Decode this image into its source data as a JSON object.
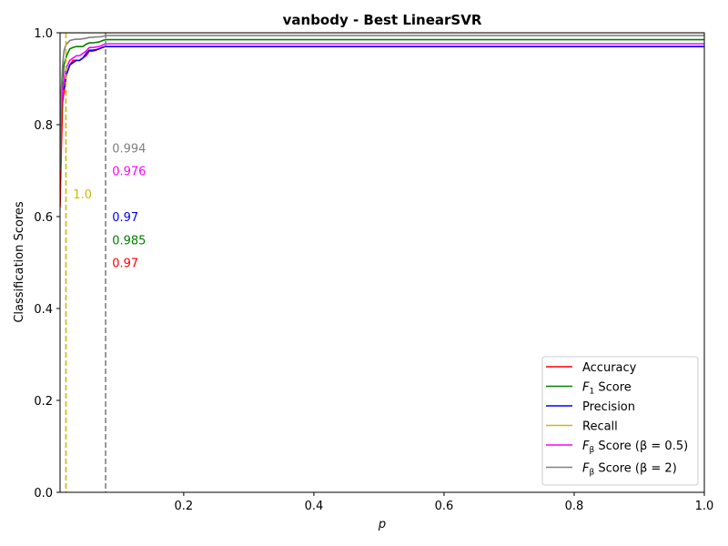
{
  "chart_data": {
    "type": "line",
    "title": "vanbody - Best LinearSVR",
    "xlabel": "p",
    "ylabel": "Classification Scores",
    "xlim": [
      0.01,
      1.0
    ],
    "ylim": [
      0.0,
      1.0
    ],
    "x_ticks": [
      0.2,
      0.4,
      0.6,
      0.8,
      1.0
    ],
    "x_tick_labels": [
      "0.2",
      "0.4",
      "0.6",
      "0.8",
      "1.0"
    ],
    "y_ticks": [
      0.0,
      0.2,
      0.4,
      0.6,
      0.8,
      1.0
    ],
    "y_tick_labels": [
      "0.0",
      "0.2",
      "0.4",
      "0.6",
      "0.8",
      "1.0"
    ],
    "grid": false,
    "legend_position": "bottom-right",
    "x": [
      0.01,
      0.012,
      0.014,
      0.016,
      0.018,
      0.02,
      0.025,
      0.03,
      0.035,
      0.04,
      0.045,
      0.05,
      0.055,
      0.06,
      0.065,
      0.07,
      0.075,
      0.08,
      0.09,
      0.1,
      0.2,
      0.4,
      0.6,
      0.8,
      1.0
    ],
    "series": [
      {
        "name": "Accuracy",
        "color": "#ff0000",
        "values": [
          0.62,
          0.75,
          0.85,
          0.87,
          0.89,
          0.91,
          0.93,
          0.94,
          0.94,
          0.94,
          0.945,
          0.95,
          0.96,
          0.96,
          0.962,
          0.965,
          0.968,
          0.97,
          0.97,
          0.97,
          0.97,
          0.97,
          0.97,
          0.97,
          0.97
        ]
      },
      {
        "name": "$F_1$ Score",
        "label_main": "F",
        "label_sub": "1",
        "label_rest": " Score",
        "color": "#008000",
        "values": [
          0.7,
          0.82,
          0.9,
          0.93,
          0.94,
          0.95,
          0.965,
          0.968,
          0.97,
          0.97,
          0.97,
          0.975,
          0.978,
          0.978,
          0.979,
          0.98,
          0.983,
          0.985,
          0.985,
          0.985,
          0.985,
          0.985,
          0.985,
          0.985,
          0.985
        ]
      },
      {
        "name": "Precision",
        "color": "#0000ff",
        "values": [
          0.865,
          0.87,
          0.875,
          0.88,
          0.895,
          0.91,
          0.93,
          0.935,
          0.94,
          0.94,
          0.945,
          0.955,
          0.962,
          0.962,
          0.963,
          0.965,
          0.968,
          0.97,
          0.97,
          0.97,
          0.97,
          0.97,
          0.97,
          0.97,
          0.97
        ]
      },
      {
        "name": "Recall",
        "color": "#ccbb00",
        "values": [
          1.0,
          1.0,
          1.0,
          1.0,
          1.0,
          1.0,
          1.0,
          1.0,
          1.0,
          1.0,
          1.0,
          1.0,
          1.0,
          1.0,
          1.0,
          1.0,
          1.0,
          1.0,
          1.0,
          1.0,
          1.0,
          1.0,
          1.0,
          1.0,
          1.0
        ]
      },
      {
        "name": "$F_\\beta$ Score ($\\beta=0.5$)",
        "label_main": "F",
        "label_sub": "β",
        "label_rest": " Score (β = 0.5)",
        "color": "#ff00ff",
        "values": [
          0.8,
          0.84,
          0.88,
          0.89,
          0.915,
          0.925,
          0.94,
          0.945,
          0.95,
          0.95,
          0.955,
          0.96,
          0.968,
          0.968,
          0.969,
          0.97,
          0.973,
          0.976,
          0.976,
          0.976,
          0.976,
          0.976,
          0.976,
          0.976,
          0.976
        ]
      },
      {
        "name": "$F_\\beta$ Score ($\\beta=2$)",
        "label_main": "F",
        "label_sub": "β",
        "label_rest": " Score (β = 2)",
        "color": "#808080",
        "values": [
          0.7,
          0.88,
          0.93,
          0.96,
          0.97,
          0.975,
          0.983,
          0.985,
          0.986,
          0.986,
          0.987,
          0.988,
          0.99,
          0.99,
          0.991,
          0.991,
          0.992,
          0.994,
          0.994,
          0.994,
          0.994,
          0.994,
          0.994,
          0.994,
          0.994
        ]
      }
    ],
    "vlines": [
      {
        "x": 0.019,
        "color": "#ccbb00"
      },
      {
        "x": 0.08,
        "color": "#808080"
      }
    ],
    "annotations": [
      {
        "text": "0.994",
        "x": 0.09,
        "y": 0.75,
        "color": "#808080"
      },
      {
        "text": "0.976",
        "x": 0.09,
        "y": 0.7,
        "color": "#ff00ff"
      },
      {
        "text": "1.0",
        "x": 0.03,
        "y": 0.65,
        "color": "#ccbb00"
      },
      {
        "text": "0.97",
        "x": 0.09,
        "y": 0.6,
        "color": "#0000ff"
      },
      {
        "text": "0.985",
        "x": 0.09,
        "y": 0.55,
        "color": "#008000"
      },
      {
        "text": "0.97",
        "x": 0.09,
        "y": 0.5,
        "color": "#ff0000"
      }
    ]
  }
}
